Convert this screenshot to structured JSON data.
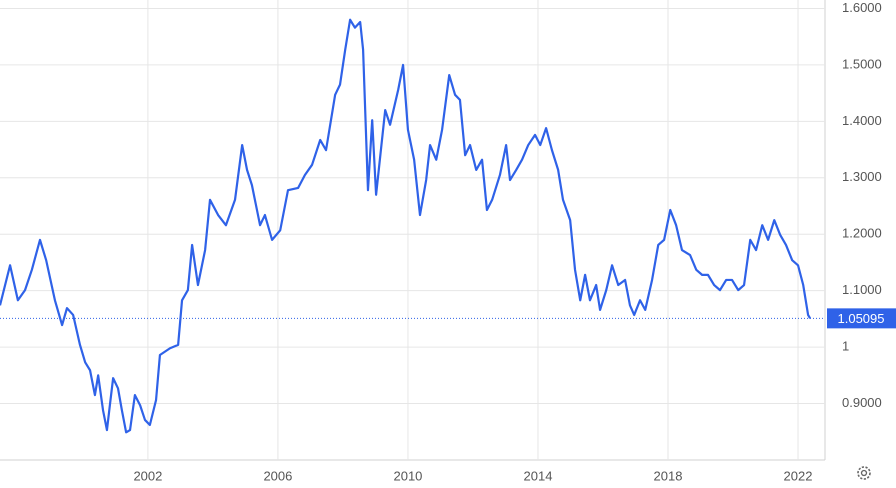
{
  "chart_data": {
    "type": "line",
    "x": [
      1997.45,
      1997.76,
      1998.0,
      1998.22,
      1998.43,
      1998.68,
      1998.87,
      1999.14,
      1999.36,
      1999.51,
      1999.7,
      1999.91,
      2000.07,
      2000.22,
      2000.37,
      2000.47,
      2000.62,
      2000.74,
      2000.83,
      2000.93,
      2001.08,
      2001.2,
      2001.33,
      2001.45,
      2001.6,
      2001.76,
      2001.91,
      2002.06,
      2002.25,
      2002.37,
      2002.68,
      2002.93,
      2003.05,
      2003.23,
      2003.36,
      2003.54,
      2003.76,
      2003.91,
      2004.16,
      2004.4,
      2004.68,
      2004.9,
      2005.05,
      2005.2,
      2005.45,
      2005.6,
      2005.82,
      2006.07,
      2006.31,
      2006.62,
      2006.83,
      2007.05,
      2007.3,
      2007.48,
      2007.76,
      2007.91,
      2008.07,
      2008.22,
      2008.37,
      2008.53,
      2008.62,
      2008.77,
      2008.9,
      2009.02,
      2009.3,
      2009.45,
      2009.7,
      2009.85,
      2010.0,
      2010.19,
      2010.37,
      2010.56,
      2010.68,
      2010.87,
      2011.05,
      2011.27,
      2011.45,
      2011.6,
      2011.76,
      2011.91,
      2012.1,
      2012.28,
      2012.43,
      2012.59,
      2012.83,
      2013.02,
      2013.14,
      2013.33,
      2013.51,
      2013.7,
      2013.91,
      2014.07,
      2014.25,
      2014.43,
      2014.62,
      2014.77,
      2014.99,
      2015.14,
      2015.3,
      2015.45,
      2015.6,
      2015.79,
      2015.91,
      2016.1,
      2016.28,
      2016.47,
      2016.68,
      2016.83,
      2016.96,
      2017.14,
      2017.3,
      2017.51,
      2017.7,
      2017.88,
      2018.07,
      2018.25,
      2018.43,
      2018.68,
      2018.87,
      2019.05,
      2019.23,
      2019.42,
      2019.6,
      2019.79,
      2019.97,
      2020.16,
      2020.34,
      2020.53,
      2020.71,
      2020.9,
      2021.08,
      2021.27,
      2021.45,
      2021.63,
      2021.82,
      2022.0,
      2022.16,
      2022.31,
      2022.37
    ],
    "values": [
      1.074,
      1.145,
      1.083,
      1.101,
      1.137,
      1.19,
      1.154,
      1.083,
      1.039,
      1.069,
      1.057,
      1.004,
      0.973,
      0.959,
      0.915,
      0.95,
      0.888,
      0.853,
      0.897,
      0.945,
      0.927,
      0.888,
      0.849,
      0.853,
      0.915,
      0.897,
      0.871,
      0.862,
      0.906,
      0.986,
      0.998,
      1.004,
      1.083,
      1.101,
      1.181,
      1.11,
      1.172,
      1.261,
      1.234,
      1.216,
      1.261,
      1.358,
      1.314,
      1.287,
      1.216,
      1.234,
      1.19,
      1.207,
      1.278,
      1.282,
      1.305,
      1.323,
      1.367,
      1.349,
      1.447,
      1.465,
      1.527,
      1.58,
      1.566,
      1.576,
      1.527,
      1.278,
      1.402,
      1.27,
      1.42,
      1.394,
      1.456,
      1.5,
      1.385,
      1.332,
      1.234,
      1.296,
      1.358,
      1.332,
      1.385,
      1.482,
      1.447,
      1.438,
      1.34,
      1.358,
      1.314,
      1.332,
      1.243,
      1.261,
      1.305,
      1.358,
      1.296,
      1.314,
      1.332,
      1.358,
      1.376,
      1.358,
      1.388,
      1.349,
      1.314,
      1.261,
      1.225,
      1.137,
      1.083,
      1.128,
      1.083,
      1.11,
      1.066,
      1.101,
      1.145,
      1.11,
      1.119,
      1.074,
      1.057,
      1.083,
      1.066,
      1.119,
      1.181,
      1.19,
      1.243,
      1.216,
      1.172,
      1.163,
      1.137,
      1.128,
      1.128,
      1.11,
      1.101,
      1.119,
      1.119,
      1.101,
      1.11,
      1.19,
      1.172,
      1.216,
      1.19,
      1.225,
      1.199,
      1.181,
      1.154,
      1.145,
      1.11,
      1.057,
      1.051
    ],
    "color": "#2f62e8",
    "current_value": 1.05095,
    "xlim": [
      1997.45,
      2022.83
    ],
    "xticks": [
      2002,
      2006,
      2010,
      2014,
      2018,
      2022
    ],
    "ylim": [
      0.8,
      1.615
    ],
    "yticks": [
      {
        "value": 0.9,
        "label": "0.9000"
      },
      1,
      {
        "value": 1.1,
        "label": "1.1000"
      },
      {
        "value": 1.2,
        "label": "1.2000"
      },
      {
        "value": 1.3,
        "label": "1.3000"
      },
      {
        "value": 1.4,
        "label": "1.4000"
      },
      {
        "value": 1.5,
        "label": "1.5000"
      },
      {
        "value": 1.6,
        "label": "1.6000"
      }
    ],
    "grid": true
  }
}
